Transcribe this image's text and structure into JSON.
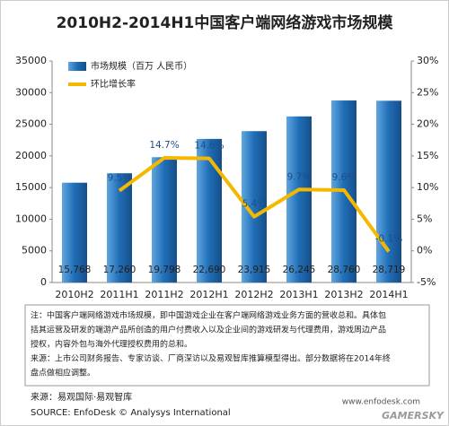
{
  "chart_data": {
    "type": "bar-line",
    "title": "2010H2-2014H1中国客户端网络游戏市场规模",
    "categories": [
      "2010H2",
      "2011H1",
      "2011H2",
      "2012H1",
      "2012H2",
      "2013H1",
      "2013H2",
      "2014H1"
    ],
    "series": [
      {
        "name": "市场规模（百万 人民币）",
        "color": "#1f6db5",
        "type": "bar",
        "values": [
          15768,
          17260,
          19798,
          22690,
          23915,
          26245,
          28760,
          28719
        ],
        "value_labels": [
          "15,768",
          "17,260",
          "19,798",
          "22,690",
          "23,915",
          "26,245",
          "28,760",
          "28,719"
        ]
      },
      {
        "name": "环比增长率",
        "color": "#f5b800",
        "type": "line",
        "axis": "y2",
        "values": [
          null,
          9.5,
          14.7,
          14.6,
          5.4,
          9.7,
          9.6,
          -0.1
        ],
        "value_labels": [
          null,
          "9.5%",
          "14.7%",
          "14.6%",
          "5.4%",
          "9.7%",
          "9.6%",
          "-0.1%"
        ]
      }
    ],
    "ylim": [
      0,
      35000
    ],
    "yticks": [
      0,
      5000,
      10000,
      15000,
      20000,
      25000,
      30000,
      35000
    ],
    "y2lim": [
      -5,
      30
    ],
    "y2ticks": [
      {
        "value": -5,
        "label": "-5%"
      },
      {
        "value": 0,
        "label": "0%"
      },
      {
        "value": 5,
        "label": "5%"
      },
      {
        "value": 10,
        "label": "10%"
      },
      {
        "value": 15,
        "label": "15%"
      },
      {
        "value": 20,
        "label": "20%"
      },
      {
        "value": 25,
        "label": "25%"
      },
      {
        "value": 30,
        "label": "30%"
      }
    ],
    "grid": false,
    "legend": "top-left",
    "notes": [
      "注：中国客户端网络游戏市场规模，即中国游戏企业在客户端网络游戏业务方面的营收总和。具体包",
      "括其运营及研发的端游产品所创造的用户付费收入以及企业间的游戏研发与代理费用，游戏周边产品",
      "授权，内容外包与海外代理授权费用的总和。",
      "来源：上市公司财务报告、专家访谈、厂商深访以及易观智库推算模型得出。部分数据将在2014年终",
      "盘点做相应调整。"
    ],
    "source": [
      "来源：易观国际·易观智库",
      "SOURCE: EnfoDesk © Analysys International"
    ],
    "watermarks": [
      "www.enfodesk.com",
      "GAMERSKY"
    ]
  }
}
